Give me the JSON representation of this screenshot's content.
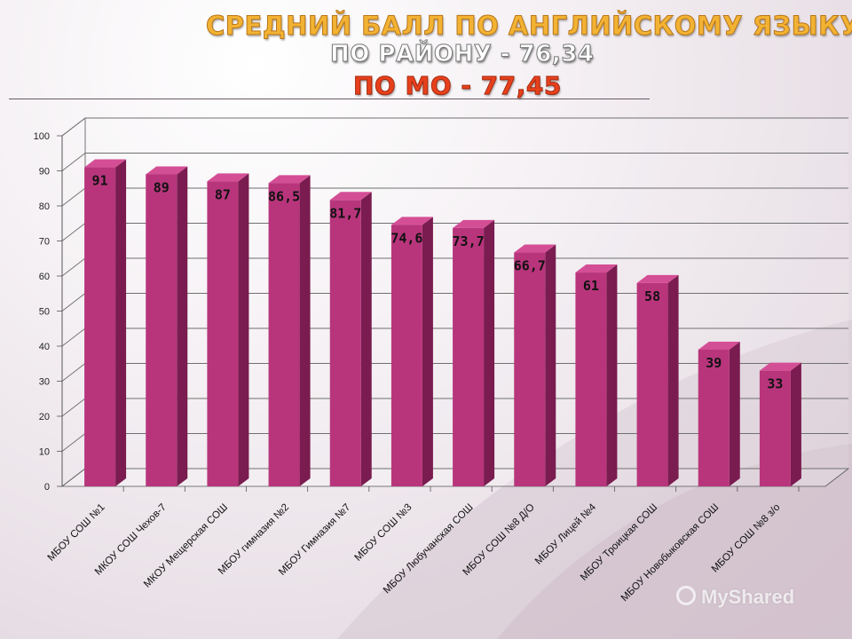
{
  "title": {
    "line1": "СРЕДНИЙ БАЛЛ ПО АНГЛИЙСКОМУ ЯЗЫКУ",
    "line2": "ПО РАЙОНУ - 76,34",
    "line3": "ПО МО - 77,45"
  },
  "watermark": "MyShared",
  "colors": {
    "bar_front": "#b8357c",
    "bar_side": "#7a1c50",
    "bar_top": "#d44e95",
    "grid": "#707070"
  },
  "chart_data": {
    "type": "bar",
    "categories": [
      "МБОУ СОШ №1",
      "МКОУ СОШ Чехов-7",
      "МКОУ Мещерская СОШ",
      "МБОУ гимназия №2",
      "МБОУ Гимназия №7",
      "МБОУ СОШ №3",
      "МБОУ Любучанская СОШ",
      "МБОУ СОШ №8 Д/О",
      "МБОУ Лицей №4",
      "МБОУ Троицкая СОШ",
      "МБОУ Новобыковская СОШ",
      "МБОУ СОШ №8 з/о"
    ],
    "values": [
      91,
      89,
      87,
      86.5,
      81.7,
      74.6,
      73.7,
      66.7,
      61,
      58,
      39,
      33
    ],
    "value_labels": [
      "91",
      "89",
      "87",
      "86,5",
      "81,7",
      "74,6",
      "73,7",
      "66,7",
      "61",
      "58",
      "39",
      "33"
    ],
    "y_ticks": [
      "0",
      "10",
      "20",
      "30",
      "40",
      "50",
      "60",
      "70",
      "80",
      "90",
      "100"
    ],
    "ylim": [
      0,
      100
    ],
    "grid": true,
    "three_d": true
  }
}
